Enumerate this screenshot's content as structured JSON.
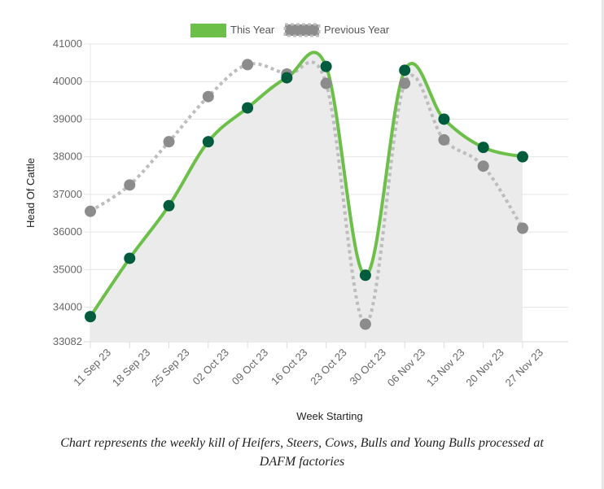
{
  "chart_data": {
    "type": "line",
    "categories": [
      "11 Sep 23",
      "18 Sep 23",
      "25 Sep 23",
      "02 Oct 23",
      "09 Oct 23",
      "16 Oct 23",
      "23 Oct 23",
      "30 Oct 23",
      "06 Nov 23",
      "13 Nov 23",
      "20 Nov 23",
      "27 Nov 23"
    ],
    "series": [
      {
        "name": "This Year",
        "values": [
          33750,
          35300,
          36700,
          38400,
          39300,
          40100,
          40400,
          34850,
          40300,
          39000,
          38250,
          38000
        ],
        "color": "#6cc04a",
        "marker_color": "#005c3c",
        "fill": "#ebebeb",
        "style": "solid"
      },
      {
        "name": "Previous Year",
        "values": [
          36550,
          37250,
          38400,
          39600,
          40450,
          40200,
          39950,
          33550,
          39950,
          38450,
          37750,
          36100
        ],
        "color": "#bdbdbd",
        "marker_color": "#8c8c8c",
        "style": "dotted"
      }
    ],
    "y_ticks": [
      33082,
      34000,
      35000,
      36000,
      37000,
      38000,
      39000,
      40000,
      41000
    ],
    "ylim": [
      33082,
      41000
    ],
    "xlabel": "Week Starting",
    "ylabel": "Head Of Cattle",
    "legend_placement": "top-center",
    "grid": true
  },
  "caption": {
    "line1": "Chart represents the weekly kill of Heifers, Steers, Cows, Bulls and Young Bulls processed at",
    "line2": "DAFM factories"
  }
}
